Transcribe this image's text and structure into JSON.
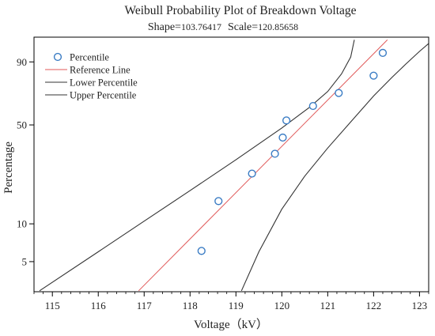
{
  "chart_data": {
    "type": "scatter",
    "title": "Weibull Probability Plot of Breakdown Voltage",
    "subtitle": {
      "shape_label": "Shape=",
      "shape_value": "103.76417",
      "scale_label": "Scale=",
      "scale_value": "120.85658"
    },
    "xlabel": "Voltage（kV）",
    "ylabel": "Percentage",
    "xlim": [
      114.6,
      123.2
    ],
    "ylim": [
      2.85,
      97.5
    ],
    "y_scale": "weibull",
    "x_ticks": [
      115,
      116,
      117,
      118,
      119,
      120,
      121,
      122,
      123
    ],
    "y_ticks": [
      5,
      10,
      50,
      90
    ],
    "legend": {
      "position": "top-left",
      "items": [
        {
          "label": "Percentile",
          "kind": "marker",
          "color": "#3a7cc4"
        },
        {
          "label": "Reference Line",
          "kind": "line",
          "color": "#e05a5a"
        },
        {
          "label": "Lower Percentile",
          "kind": "line",
          "color": "#333333"
        },
        {
          "label": "Upper Percentile",
          "kind": "line",
          "color": "#333333"
        }
      ]
    },
    "series": [
      {
        "name": "Percentile",
        "kind": "marker",
        "color": "#3a7cc4",
        "points": [
          {
            "x": 118.25,
            "y": 6.1
          },
          {
            "x": 118.62,
            "y": 15.0
          },
          {
            "x": 119.35,
            "y": 24.0
          },
          {
            "x": 119.85,
            "y": 33.0
          },
          {
            "x": 120.02,
            "y": 42.0
          },
          {
            "x": 120.1,
            "y": 53.0
          },
          {
            "x": 120.68,
            "y": 63.0
          },
          {
            "x": 121.24,
            "y": 72.0
          },
          {
            "x": 122.0,
            "y": 83.0
          },
          {
            "x": 122.2,
            "y": 93.5
          }
        ]
      },
      {
        "name": "Reference Line",
        "kind": "line",
        "color": "#e05a5a",
        "points": [
          {
            "x": 116.88,
            "y": 2.9
          },
          {
            "x": 122.3,
            "y": 97.0
          }
        ]
      },
      {
        "name": "Lower Percentile",
        "kind": "line",
        "color": "#333333",
        "points": [
          {
            "x": 114.72,
            "y": 2.9
          },
          {
            "x": 116.0,
            "y": 6.0
          },
          {
            "x": 117.0,
            "y": 10.5
          },
          {
            "x": 118.0,
            "y": 18.0
          },
          {
            "x": 119.0,
            "y": 30.0
          },
          {
            "x": 120.0,
            "y": 48.0
          },
          {
            "x": 120.6,
            "y": 62.0
          },
          {
            "x": 121.0,
            "y": 73.0
          },
          {
            "x": 121.3,
            "y": 84.0
          },
          {
            "x": 121.5,
            "y": 92.0
          },
          {
            "x": 121.58,
            "y": 97.0
          }
        ]
      },
      {
        "name": "Upper Percentile",
        "kind": "line",
        "color": "#333333",
        "points": [
          {
            "x": 119.12,
            "y": 2.9
          },
          {
            "x": 119.5,
            "y": 6.0
          },
          {
            "x": 120.0,
            "y": 13.0
          },
          {
            "x": 120.5,
            "y": 23.0
          },
          {
            "x": 121.0,
            "y": 36.0
          },
          {
            "x": 121.5,
            "y": 52.0
          },
          {
            "x": 122.0,
            "y": 70.0
          },
          {
            "x": 122.4,
            "y": 82.0
          },
          {
            "x": 122.7,
            "y": 89.0
          },
          {
            "x": 123.0,
            "y": 94.0
          },
          {
            "x": 123.2,
            "y": 96.2
          }
        ]
      }
    ]
  }
}
